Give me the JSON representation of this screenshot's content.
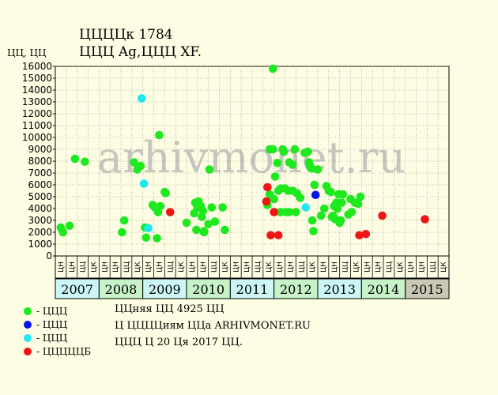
{
  "title_line1": "ЦЦЦЦк 1784",
  "title_line2": "ЦЦЦ Ag,ЦЦЦ XF.",
  "watermark": "arhivmonet.ru",
  "notes": [
    "ЦЦняя ЦЦ 4925 ЦЦ",
    "Ц ЦЦЦЦиям ЦЦа ARHIVMONET.RU",
    "ЦЦЦ Ц 20 Ця 2017 ЦЦ."
  ],
  "legend": [
    {
      "label": "- ЦЦЦ",
      "color": "#1ee81e"
    },
    {
      "label": "- ЦЦЦ",
      "color": "#0a14e6"
    },
    {
      "label": "- ЦЦЦ",
      "color": "#22e6f0"
    },
    {
      "label": "- ЦЦЦЦЦБ",
      "color": "#f01414"
    }
  ],
  "chart_data": {
    "type": "scatter",
    "title": "ЦЦЦЦк 1784",
    "subtitle": "ЦЦЦ Ag,ЦЦЦ XF.",
    "ylabel": "ЦЦ, ЦЦ",
    "ylim": [
      0,
      16500
    ],
    "yticks": [
      0,
      1000,
      2000,
      3000,
      4000,
      5000,
      6000,
      7000,
      8000,
      9000,
      10000,
      11000,
      12000,
      13000,
      14000,
      15000,
      16000
    ],
    "grid": true,
    "x_unit": "month slot (4 slots per year, starting 2007)",
    "slot_labels": [
      "ЦН",
      "ЦН",
      "ЦЦ",
      "ЦК"
    ],
    "years": [
      {
        "label": "2007",
        "color": "#ccf6f6"
      },
      {
        "label": "2008",
        "color": "#c8f2c8"
      },
      {
        "label": "2009",
        "color": "#ccf6f6"
      },
      {
        "label": "2010",
        "color": "#c8f2c8"
      },
      {
        "label": "2011",
        "color": "#ccf6f6"
      },
      {
        "label": "2012",
        "color": "#c8f2c8"
      },
      {
        "label": "2013",
        "color": "#ccf6f6"
      },
      {
        "label": "2014",
        "color": "#c8f2c8"
      },
      {
        "label": "2015",
        "color": "#c8c8b4"
      }
    ],
    "series": [
      {
        "color": "#1ee81e",
        "points": [
          [
            0.5,
            2400
          ],
          [
            0.7,
            2000
          ],
          [
            1.3,
            2550
          ],
          [
            1.8,
            8200
          ],
          [
            2.7,
            7950
          ],
          [
            6.1,
            2000
          ],
          [
            6.3,
            3000
          ],
          [
            7.2,
            7900
          ],
          [
            7.5,
            7300
          ],
          [
            7.8,
            7600
          ],
          [
            8.3,
            1550
          ],
          [
            8.2,
            2400
          ],
          [
            8.9,
            4300
          ],
          [
            9.1,
            4100
          ],
          [
            9.4,
            3700
          ],
          [
            9.3,
            1500
          ],
          [
            9.6,
            4200
          ],
          [
            9.5,
            10200
          ],
          [
            10.0,
            5400
          ],
          [
            10.1,
            5300
          ],
          [
            12.0,
            2800
          ],
          [
            12.7,
            3600
          ],
          [
            12.8,
            4500
          ],
          [
            12.9,
            2200
          ],
          [
            13.0,
            4100
          ],
          [
            13.1,
            4600
          ],
          [
            13.3,
            4200
          ],
          [
            13.4,
            3300
          ],
          [
            13.5,
            3800
          ],
          [
            13.6,
            2100
          ],
          [
            13.6,
            2000
          ],
          [
            14.0,
            2700
          ],
          [
            14.1,
            7300
          ],
          [
            14.3,
            4100
          ],
          [
            14.6,
            2900
          ],
          [
            15.3,
            4100
          ],
          [
            15.5,
            2200
          ],
          [
            19.4,
            4300
          ],
          [
            19.6,
            5200
          ],
          [
            19.6,
            9000
          ],
          [
            19.9,
            9000
          ],
          [
            19.9,
            15800
          ],
          [
            20.0,
            4800
          ],
          [
            20.1,
            6700
          ],
          [
            20.3,
            7850
          ],
          [
            20.4,
            5500
          ],
          [
            20.6,
            5700
          ],
          [
            20.6,
            3700
          ],
          [
            20.8,
            9000
          ],
          [
            20.9,
            8800
          ],
          [
            21.0,
            5700
          ],
          [
            21.1,
            3700
          ],
          [
            21.3,
            5500
          ],
          [
            21.4,
            7900
          ],
          [
            21.4,
            3700
          ],
          [
            21.7,
            5500
          ],
          [
            21.7,
            7700
          ],
          [
            21.9,
            9000
          ],
          [
            22.0,
            3700
          ],
          [
            22.1,
            5300
          ],
          [
            22.4,
            4900
          ],
          [
            22.8,
            8700
          ],
          [
            23.1,
            8800
          ],
          [
            23.2,
            7900
          ],
          [
            23.3,
            7600
          ],
          [
            23.4,
            7400
          ],
          [
            23.5,
            3000
          ],
          [
            23.6,
            2100
          ],
          [
            23.7,
            6000
          ],
          [
            24.0,
            7300
          ],
          [
            24.3,
            3400
          ],
          [
            24.6,
            4000
          ],
          [
            24.8,
            5900
          ],
          [
            25.0,
            5500
          ],
          [
            25.2,
            5400
          ],
          [
            25.3,
            3300
          ],
          [
            25.4,
            3400
          ],
          [
            25.5,
            4200
          ],
          [
            25.6,
            3100
          ],
          [
            25.7,
            4500
          ],
          [
            25.8,
            4000
          ],
          [
            25.9,
            5200
          ],
          [
            26.0,
            2800
          ],
          [
            26.1,
            3000
          ],
          [
            26.2,
            4500
          ],
          [
            26.3,
            5200
          ],
          [
            26.8,
            3500
          ],
          [
            27.0,
            4800
          ],
          [
            27.1,
            3700
          ],
          [
            27.4,
            4500
          ],
          [
            27.7,
            4400
          ],
          [
            27.9,
            5000
          ]
        ]
      },
      {
        "color": "#0a14e6",
        "points": [
          [
            23.8,
            5150
          ]
        ]
      },
      {
        "color": "#22e6f0",
        "points": [
          [
            7.9,
            13300
          ],
          [
            8.1,
            6100
          ],
          [
            8.5,
            2350
          ],
          [
            22.9,
            4100
          ]
        ]
      },
      {
        "color": "#f01414",
        "points": [
          [
            10.5,
            3700
          ],
          [
            19.3,
            4600
          ],
          [
            19.4,
            5800
          ],
          [
            19.7,
            1750
          ],
          [
            20.0,
            3700
          ],
          [
            20.4,
            1750
          ],
          [
            27.8,
            1750
          ],
          [
            28.4,
            1850
          ],
          [
            29.9,
            3400
          ],
          [
            33.8,
            3100
          ]
        ]
      }
    ]
  }
}
